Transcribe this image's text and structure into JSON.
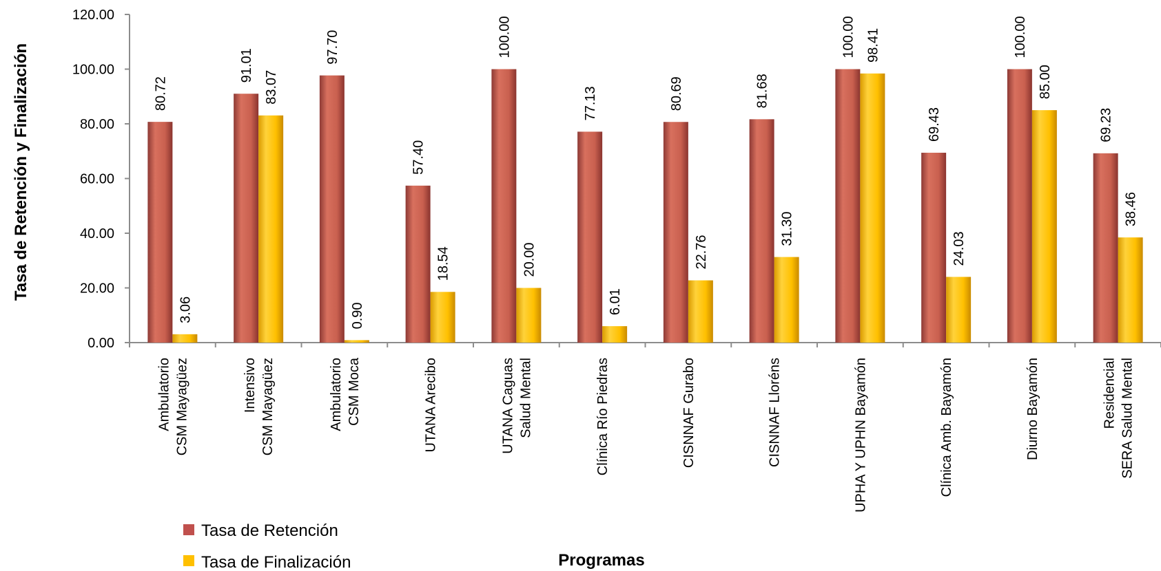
{
  "chart_data": {
    "type": "bar",
    "ylabel": "Tasa de Retención y Finalización",
    "xlabel": "Programas",
    "ylim": [
      0,
      120
    ],
    "ytick_step": 20,
    "ytick_labels": [
      "0.00",
      "20.00",
      "40.00",
      "60.00",
      "80.00",
      "100.00",
      "120.00"
    ],
    "grid": false,
    "legend_position": "bottom-left",
    "categories": [
      [
        "Ambulatorio",
        "CSM Mayagüez"
      ],
      [
        "Intensivo",
        "CSM Mayagüez"
      ],
      [
        "Ambulatorio",
        "CSM Moca"
      ],
      [
        "UTANA Arecibo"
      ],
      [
        "UTANA Caguas",
        "Salud Mental"
      ],
      [
        "Clínica Río Piedras"
      ],
      [
        "CISNNAF Gurabo"
      ],
      [
        "CISNNAF Lloréns"
      ],
      [
        "UPHA Y UPHN Bayamón"
      ],
      [
        "Clínica Amb. Bayamón"
      ],
      [
        "Diurno Bayamón"
      ],
      [
        "Residencial",
        "SERA Salud Mental"
      ]
    ],
    "series": [
      {
        "name": "Tasa de Retención",
        "color": "#C0504D",
        "values": [
          80.72,
          91.01,
          97.7,
          57.4,
          100.0,
          77.13,
          80.69,
          81.68,
          100.0,
          69.43,
          100.0,
          69.23
        ],
        "labels": [
          "80.72",
          "91.01",
          "97.70",
          "57.40",
          "100.00",
          "77.13",
          "80.69",
          "81.68",
          "100.00",
          "69.43",
          "100.00",
          "69.23"
        ]
      },
      {
        "name": "Tasa de Finalización",
        "color": "#FFC000",
        "values": [
          3.06,
          83.07,
          0.9,
          18.54,
          20.0,
          6.01,
          22.76,
          31.3,
          98.41,
          24.03,
          85.0,
          38.46
        ],
        "labels": [
          "3.06",
          "83.07",
          "0.90",
          "18.54",
          "20.00",
          "6.01",
          "22.76",
          "31.30",
          "98.41",
          "24.03",
          "85.00",
          "38.46"
        ]
      }
    ]
  }
}
